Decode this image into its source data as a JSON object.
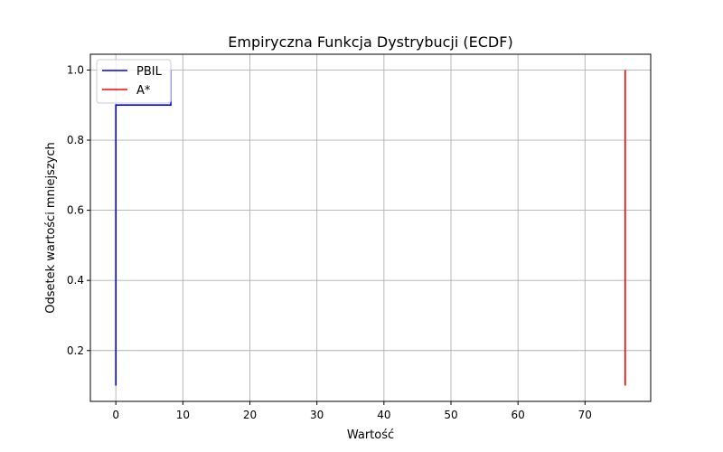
{
  "chart_data": {
    "type": "line",
    "title": "Empiryczna Funkcja Dystrybucji (ECDF)",
    "xlabel": "Wartość",
    "ylabel": "Odsetek wartości mniejszych",
    "xlim": [
      -3.8,
      79.8
    ],
    "ylim": [
      0.055,
      1.045
    ],
    "xticks": [
      0,
      10,
      20,
      30,
      40,
      50,
      60,
      70
    ],
    "yticks": [
      0.2,
      0.4,
      0.6,
      0.8,
      1.0
    ],
    "ytick_labels": [
      "0.2",
      "0.4",
      "0.6",
      "0.8",
      "1.0"
    ],
    "grid": true,
    "legend_position": "top-left",
    "series": [
      {
        "name": "PBIL",
        "color": "#0000ff",
        "x": [
          0,
          0,
          8.2,
          8.2
        ],
        "y": [
          0.1,
          0.9,
          0.9,
          1.0
        ]
      },
      {
        "name": "A*",
        "color": "#ff0000",
        "x": [
          76,
          76
        ],
        "y": [
          0.1,
          1.0
        ]
      }
    ]
  }
}
